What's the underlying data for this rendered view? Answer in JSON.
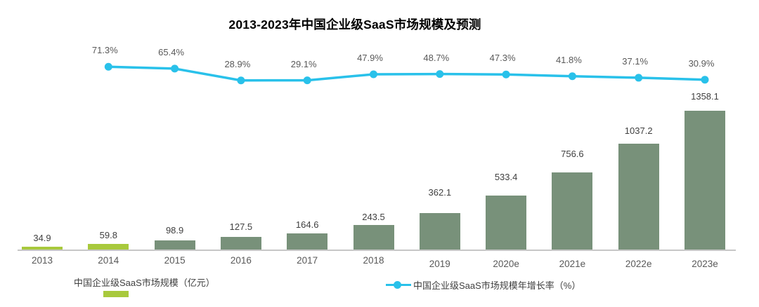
{
  "title": "2013-2023年中国企业级SaaS市场规模及预测",
  "chart_data": {
    "type": "bar+line",
    "title": "2013-2023年中国企业级SaaS市场规模及预测",
    "categories": [
      "2013",
      "2014",
      "2015",
      "2016",
      "2017",
      "2018",
      "2019",
      "2020e",
      "2021e",
      "2022e",
      "2023e"
    ],
    "series": [
      {
        "name": "中国企业级SaaS市场规模（亿元）",
        "type": "bar",
        "unit": "亿元",
        "values": [
          34.9,
          59.8,
          98.9,
          127.5,
          164.6,
          243.5,
          362.1,
          533.4,
          756.6,
          1037.2,
          1358.1
        ],
        "highlight_indices": [
          0,
          1
        ]
      },
      {
        "name": "中国企业级SaaS市场规模年增长率（%）",
        "type": "line",
        "unit": "%",
        "categories": [
          "2014",
          "2015",
          "2016",
          "2017",
          "2018",
          "2019",
          "2020e",
          "2021e",
          "2022e",
          "2023e"
        ],
        "values": [
          71.3,
          65.4,
          28.9,
          29.1,
          47.9,
          48.7,
          47.3,
          41.8,
          37.1,
          30.9
        ]
      }
    ],
    "colors": {
      "bar_highlight": "#a8c93c",
      "bar_default": "#78917a",
      "line": "#29c1ea",
      "axis": "#c6c6c6",
      "value_label": "#404040",
      "percent_label": "#595959",
      "tick_label": "#595959"
    },
    "axes": {
      "y_axis_visible": false,
      "secondary_axis_visible": false,
      "gridlines": false,
      "x_axis_line": true
    },
    "legend_position": "bottom"
  },
  "legend": {
    "items": [
      {
        "label": "中国企业级SaaS市场规模（亿元）",
        "marker": "bar-swatch",
        "color": "#a8c93c"
      },
      {
        "label": "中国企业级SaaS市场规模年增长率（%）",
        "marker": "line-dot",
        "color": "#29c1ea"
      }
    ]
  }
}
